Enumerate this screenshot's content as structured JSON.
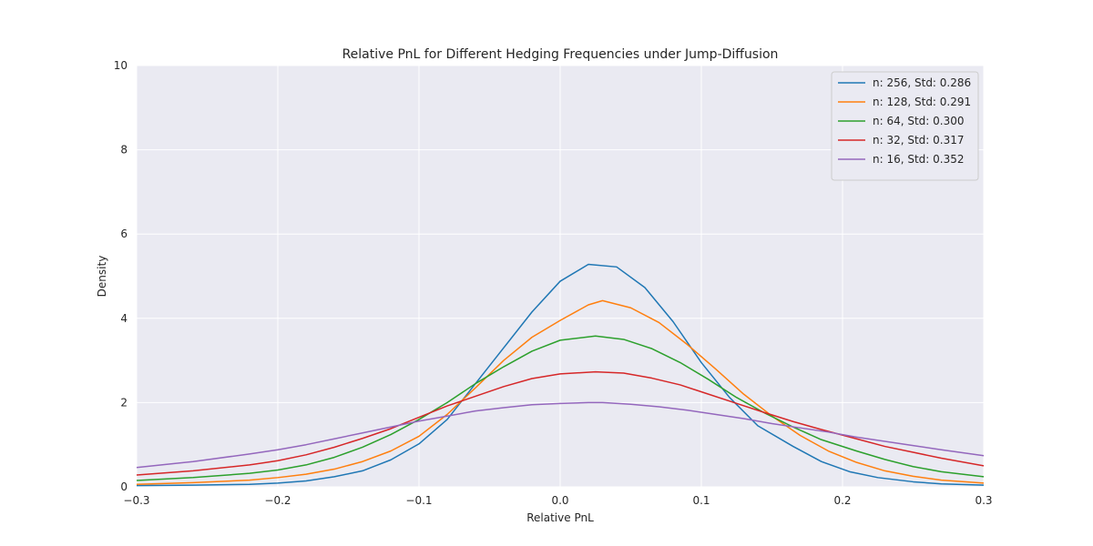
{
  "chart_data": {
    "type": "line",
    "title": "Relative PnL for Different Hedging Frequencies under Jump-Diffusion",
    "xlabel": "Relative PnL",
    "ylabel": "Density",
    "xlim": [
      -0.3,
      0.3
    ],
    "ylim": [
      0,
      10
    ],
    "xticks": [
      -0.3,
      -0.2,
      -0.1,
      0.0,
      0.1,
      0.2,
      0.3
    ],
    "xtick_labels": [
      "−0.3",
      "−0.2",
      "−0.1",
      "0.0",
      "0.1",
      "0.2",
      "0.3"
    ],
    "yticks": [
      0,
      2,
      4,
      6,
      8,
      10
    ],
    "ytick_labels": [
      "0",
      "2",
      "4",
      "6",
      "8",
      "10"
    ],
    "grid": true,
    "legend_position": "top-right",
    "series": [
      {
        "name": "n: 256, Std: 0.286",
        "color": "#1f77b4",
        "x": [
          -0.3,
          -0.26,
          -0.22,
          -0.2,
          -0.18,
          -0.16,
          -0.14,
          -0.12,
          -0.1,
          -0.08,
          -0.06,
          -0.04,
          -0.02,
          0.0,
          0.02,
          0.04,
          0.06,
          0.08,
          0.1,
          0.12,
          0.14,
          0.165,
          0.185,
          0.205,
          0.225,
          0.25,
          0.27,
          0.3
        ],
        "y": [
          0.03,
          0.04,
          0.06,
          0.09,
          0.14,
          0.24,
          0.38,
          0.64,
          1.02,
          1.6,
          2.45,
          3.3,
          4.15,
          4.88,
          5.28,
          5.22,
          4.73,
          3.92,
          2.95,
          2.12,
          1.45,
          0.96,
          0.6,
          0.36,
          0.22,
          0.12,
          0.07,
          0.04
        ]
      },
      {
        "name": "n: 128, Std: 0.291",
        "color": "#ff7f0e",
        "x": [
          -0.3,
          -0.26,
          -0.22,
          -0.2,
          -0.18,
          -0.16,
          -0.14,
          -0.12,
          -0.1,
          -0.08,
          -0.06,
          -0.04,
          -0.02,
          0.0,
          0.02,
          0.03,
          0.05,
          0.07,
          0.09,
          0.11,
          0.13,
          0.15,
          0.17,
          0.19,
          0.21,
          0.23,
          0.25,
          0.27,
          0.3
        ],
        "y": [
          0.06,
          0.1,
          0.16,
          0.22,
          0.3,
          0.42,
          0.6,
          0.85,
          1.2,
          1.72,
          2.35,
          3.0,
          3.55,
          3.95,
          4.32,
          4.42,
          4.25,
          3.9,
          3.38,
          2.8,
          2.2,
          1.68,
          1.22,
          0.85,
          0.58,
          0.38,
          0.25,
          0.16,
          0.09
        ]
      },
      {
        "name": "n: 64, Std: 0.300",
        "color": "#2ca02c",
        "x": [
          -0.3,
          -0.26,
          -0.22,
          -0.2,
          -0.18,
          -0.16,
          -0.14,
          -0.12,
          -0.1,
          -0.08,
          -0.06,
          -0.04,
          -0.02,
          0.0,
          0.025,
          0.045,
          0.065,
          0.085,
          0.105,
          0.125,
          0.145,
          0.165,
          0.185,
          0.21,
          0.23,
          0.25,
          0.27,
          0.3
        ],
        "y": [
          0.15,
          0.22,
          0.32,
          0.4,
          0.52,
          0.7,
          0.94,
          1.24,
          1.6,
          2.0,
          2.45,
          2.85,
          3.22,
          3.48,
          3.58,
          3.5,
          3.28,
          2.95,
          2.55,
          2.12,
          1.75,
          1.42,
          1.12,
          0.85,
          0.65,
          0.48,
          0.36,
          0.24
        ]
      },
      {
        "name": "n: 32, Std: 0.317",
        "color": "#d62728",
        "x": [
          -0.3,
          -0.26,
          -0.22,
          -0.2,
          -0.18,
          -0.16,
          -0.14,
          -0.12,
          -0.1,
          -0.08,
          -0.06,
          -0.04,
          -0.02,
          0.0,
          0.025,
          0.045,
          0.065,
          0.085,
          0.105,
          0.125,
          0.145,
          0.165,
          0.185,
          0.21,
          0.23,
          0.25,
          0.27,
          0.3
        ],
        "y": [
          0.28,
          0.38,
          0.52,
          0.62,
          0.76,
          0.94,
          1.15,
          1.38,
          1.65,
          1.92,
          2.15,
          2.38,
          2.57,
          2.68,
          2.73,
          2.7,
          2.58,
          2.42,
          2.2,
          1.98,
          1.76,
          1.55,
          1.36,
          1.14,
          0.96,
          0.82,
          0.68,
          0.5
        ]
      },
      {
        "name": "n: 16, Std: 0.352",
        "color": "#9467bd",
        "x": [
          -0.3,
          -0.26,
          -0.22,
          -0.2,
          -0.18,
          -0.16,
          -0.14,
          -0.12,
          -0.1,
          -0.08,
          -0.06,
          -0.04,
          -0.02,
          0.0,
          0.02,
          0.03,
          0.05,
          0.07,
          0.09,
          0.11,
          0.13,
          0.15,
          0.17,
          0.19,
          0.21,
          0.23,
          0.25,
          0.27,
          0.3
        ],
        "y": [
          0.46,
          0.6,
          0.78,
          0.88,
          1.0,
          1.14,
          1.28,
          1.42,
          1.56,
          1.68,
          1.8,
          1.88,
          1.95,
          1.98,
          2.0,
          2.0,
          1.96,
          1.9,
          1.82,
          1.72,
          1.62,
          1.5,
          1.4,
          1.3,
          1.18,
          1.08,
          0.98,
          0.88,
          0.74
        ]
      }
    ]
  }
}
